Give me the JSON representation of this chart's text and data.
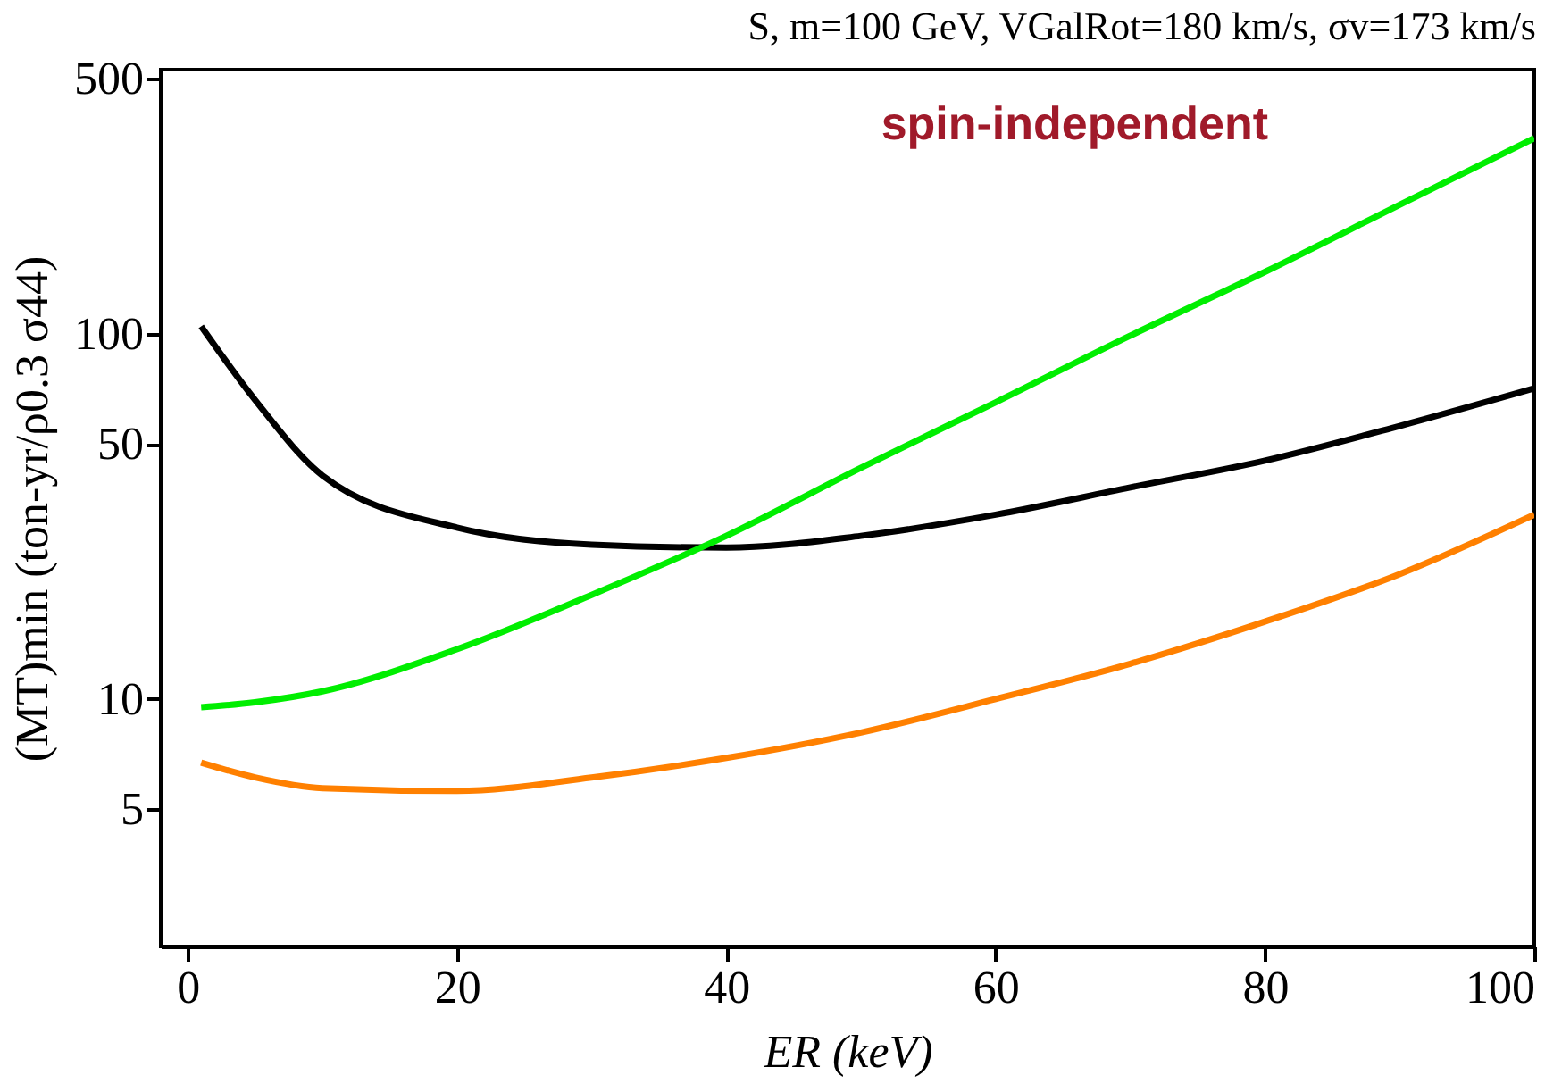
{
  "chart_data": {
    "type": "line",
    "title": "S, m=100 GeV, VGalRot=180 km/s, σv=173 km/s",
    "xlabel": "ER (keV)",
    "ylabel": "(MT)min (ton-yr/ρ0.3 σ44)",
    "annotations": [
      "spin-independent"
    ],
    "log": "y",
    "grid": false,
    "legend": false,
    "marker": "none",
    "line_style": "solid",
    "x": [
      1,
      5,
      10,
      20,
      30,
      40,
      50,
      60,
      70,
      80,
      90,
      100
    ],
    "series": [
      {
        "color": "#000000",
        "values": [
          105,
          66,
          41,
          29.5,
          26.5,
          26,
          28,
          32,
          38,
          45,
          56,
          71
        ]
      },
      {
        "color": "#00ee00",
        "values": [
          9.5,
          9.8,
          10.5,
          13.7,
          19.3,
          28,
          43,
          65,
          99,
          148,
          226,
          344
        ]
      },
      {
        "color": "#ff8000",
        "values": [
          6.7,
          6.1,
          5.7,
          5.6,
          6.1,
          6.9,
          8.1,
          10,
          12.5,
          16.3,
          22,
          32
        ]
      }
    ],
    "xlim": [
      -2,
      100
    ],
    "xticks": [
      0,
      20,
      40,
      60,
      80,
      100
    ],
    "ylim": [
      2.1,
      530
    ],
    "yticks": [
      5,
      10,
      50,
      100,
      500
    ]
  }
}
